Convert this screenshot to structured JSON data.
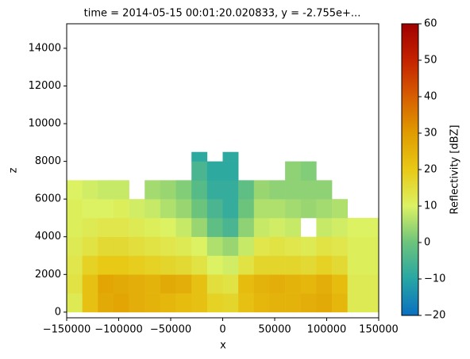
{
  "chart_data": {
    "type": "mesh",
    "title": "time = 2014-05-15 00:01:20.020833, y = -2.755e+...",
    "x_label": "x",
    "y_label": "z",
    "colorbar_label": "Reflectivity [dBZ]",
    "x_edges": [
      -150000,
      -135000,
      -120000,
      -105000,
      -90000,
      -75000,
      -60000,
      -45000,
      -30000,
      -15000,
      0,
      15000,
      30000,
      45000,
      60000,
      75000,
      90000,
      105000,
      120000,
      135000,
      150000
    ],
    "z_edges": [
      0,
      1000,
      2000,
      3000,
      4000,
      5000,
      6000,
      7000,
      8000,
      8500
    ],
    "values": [
      [
        12,
        22,
        27,
        28,
        26,
        25,
        24,
        23,
        22,
        18,
        17,
        22,
        24,
        25,
        25,
        26,
        27,
        24,
        12,
        12
      ],
      [
        14,
        22,
        28,
        27,
        26,
        25,
        27,
        26,
        22,
        15,
        14,
        23,
        25,
        26,
        25,
        24,
        26,
        23,
        12,
        12
      ],
      [
        13,
        18,
        20,
        20,
        19,
        18,
        17,
        16,
        14,
        10,
        9,
        14,
        17,
        17,
        17,
        16,
        18,
        16,
        11,
        11
      ],
      [
        12,
        14,
        16,
        16,
        15,
        14,
        13,
        12,
        10,
        6,
        4,
        8,
        13,
        14,
        13,
        12,
        14,
        13,
        11,
        11
      ],
      [
        11,
        12,
        13,
        13,
        12,
        11,
        10,
        8,
        4,
        -2,
        -5,
        3,
        8,
        9,
        8,
        null,
        8,
        9,
        10,
        10
      ],
      [
        11,
        10,
        10,
        11,
        9,
        8,
        6,
        4,
        0,
        -5,
        -8,
        0,
        6,
        6,
        5,
        4,
        5,
        6,
        null,
        null
      ],
      [
        10,
        9,
        8,
        8,
        null,
        5,
        4,
        2,
        -3,
        -8,
        -8,
        -2,
        4,
        3,
        3,
        3,
        3,
        null,
        null,
        null
      ],
      [
        null,
        null,
        null,
        null,
        null,
        null,
        null,
        null,
        -5,
        -9,
        -9,
        null,
        null,
        null,
        3,
        2,
        null,
        null,
        null,
        null
      ],
      [
        null,
        null,
        null,
        null,
        null,
        null,
        null,
        null,
        -9,
        null,
        -9,
        null,
        null,
        null,
        null,
        null,
        null,
        null,
        null,
        null
      ]
    ],
    "xlim": [
      -150000,
      150000
    ],
    "ylim": [
      -300,
      15300
    ],
    "xticks": [
      {
        "value": -150000,
        "label": "−150000"
      },
      {
        "value": -100000,
        "label": "−100000"
      },
      {
        "value": -50000,
        "label": "−50000"
      },
      0,
      50000,
      100000,
      150000
    ],
    "yticks": [
      0,
      2000,
      4000,
      6000,
      8000,
      10000,
      12000,
      14000
    ],
    "clim": [
      -20,
      60
    ],
    "cticks": [
      {
        "value": -20,
        "label": "−20"
      },
      {
        "value": -10,
        "label": "−10"
      },
      0,
      10,
      20,
      30,
      40,
      50,
      60
    ],
    "colormap": [
      "#0a6fc0",
      "#27a6a4",
      "#6cc47c",
      "#dcf263",
      "#e8c916",
      "#e09c00",
      "#d65e00",
      "#c42200",
      "#a00000"
    ]
  }
}
